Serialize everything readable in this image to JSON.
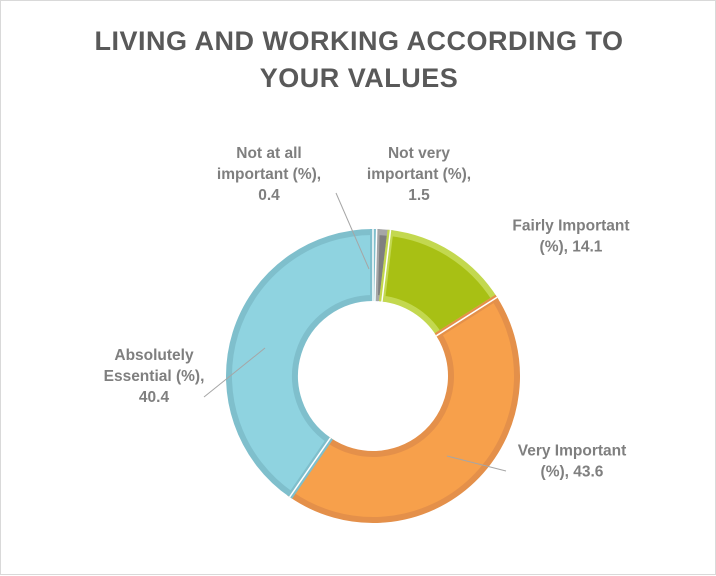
{
  "chart_data": {
    "type": "pie",
    "variant": "donut",
    "title": "LIVING AND WORKING ACCORDING TO YOUR VALUES",
    "title_lines": [
      "LIVING AND WORKING ACCORDING TO",
      "YOUR VALUES"
    ],
    "series": [
      {
        "categories": [
          "Not at all important (%)",
          "Not very important (%)",
          "Fairly Important (%)",
          "Very Important (%)",
          "Absolutely Essential (%)"
        ],
        "values": [
          0.4,
          1.5,
          14.1,
          43.6,
          40.4
        ],
        "colors": [
          "#2e5fa8",
          "#7f7f7f",
          "#a8c014",
          "#f7a04b",
          "#8fd3e0"
        ],
        "edge_colors": [
          "#4a7fc1",
          "#a6a6a6",
          "#c3d84f",
          "#e4904a",
          "#7fbfcc"
        ],
        "data_labels": [
          [
            "Not at all",
            "important (%),",
            "0.4"
          ],
          [
            "Not very",
            "important (%),",
            "1.5"
          ],
          [
            "Fairly Important",
            "(%), 14.1"
          ],
          [
            "Very Important",
            "(%), 43.6"
          ],
          [
            "Absolutely",
            "Essential (%),",
            "40.4"
          ]
        ]
      }
    ],
    "legend": "none"
  }
}
